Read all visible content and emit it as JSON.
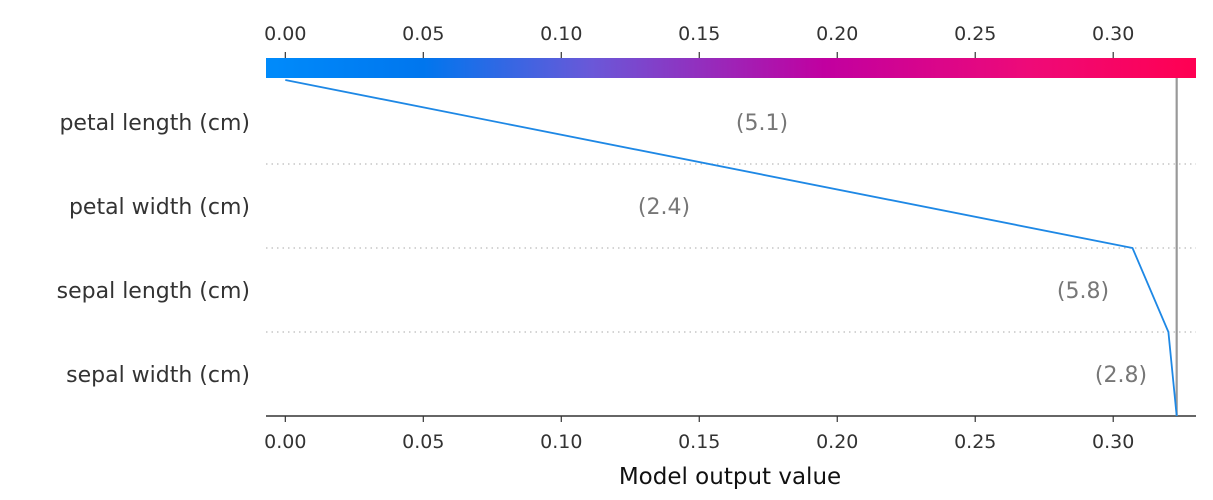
{
  "chart_data": {
    "type": "line",
    "subtype": "shap-decision-plot",
    "xlabel": "Model output value",
    "xlim": [
      -0.007,
      0.33
    ],
    "x_ticks": [
      "0.00",
      "0.05",
      "0.10",
      "0.15",
      "0.20",
      "0.25",
      "0.30"
    ],
    "x_tick_values": [
      0.0,
      0.05,
      0.1,
      0.15,
      0.2,
      0.25,
      0.3
    ],
    "base_value": 0.0,
    "final_value": 0.323,
    "features": [
      {
        "name": "petal length (cm)",
        "value_label": "(5.1)",
        "cumulative_output": 0.307
      },
      {
        "name": "petal width (cm)",
        "value_label": "(2.4)",
        "cumulative_output": 0.307
      },
      {
        "name": "sepal length (cm)",
        "value_label": "(5.8)",
        "cumulative_output": 0.32
      },
      {
        "name": "sepal width (cm)",
        "value_label": "(2.8)",
        "cumulative_output": 0.323
      }
    ],
    "path": [
      {
        "level": 4,
        "x": 0.0
      },
      {
        "level": 2,
        "x": 0.307
      },
      {
        "level": 1,
        "x": 0.32
      },
      {
        "level": 0,
        "x": 0.323
      }
    ],
    "colors": {
      "line": "#1E88E5",
      "vertical_marker": "#999999",
      "colorbar_start": "#008BFB",
      "colorbar_mid": "#C100A0",
      "colorbar_end": "#FF0052",
      "feature_label": "#333333",
      "value_label": "#777777",
      "grid_dotted": "#BBBBBB",
      "axis": "#333333"
    },
    "grid": "dotted-horizontal"
  }
}
